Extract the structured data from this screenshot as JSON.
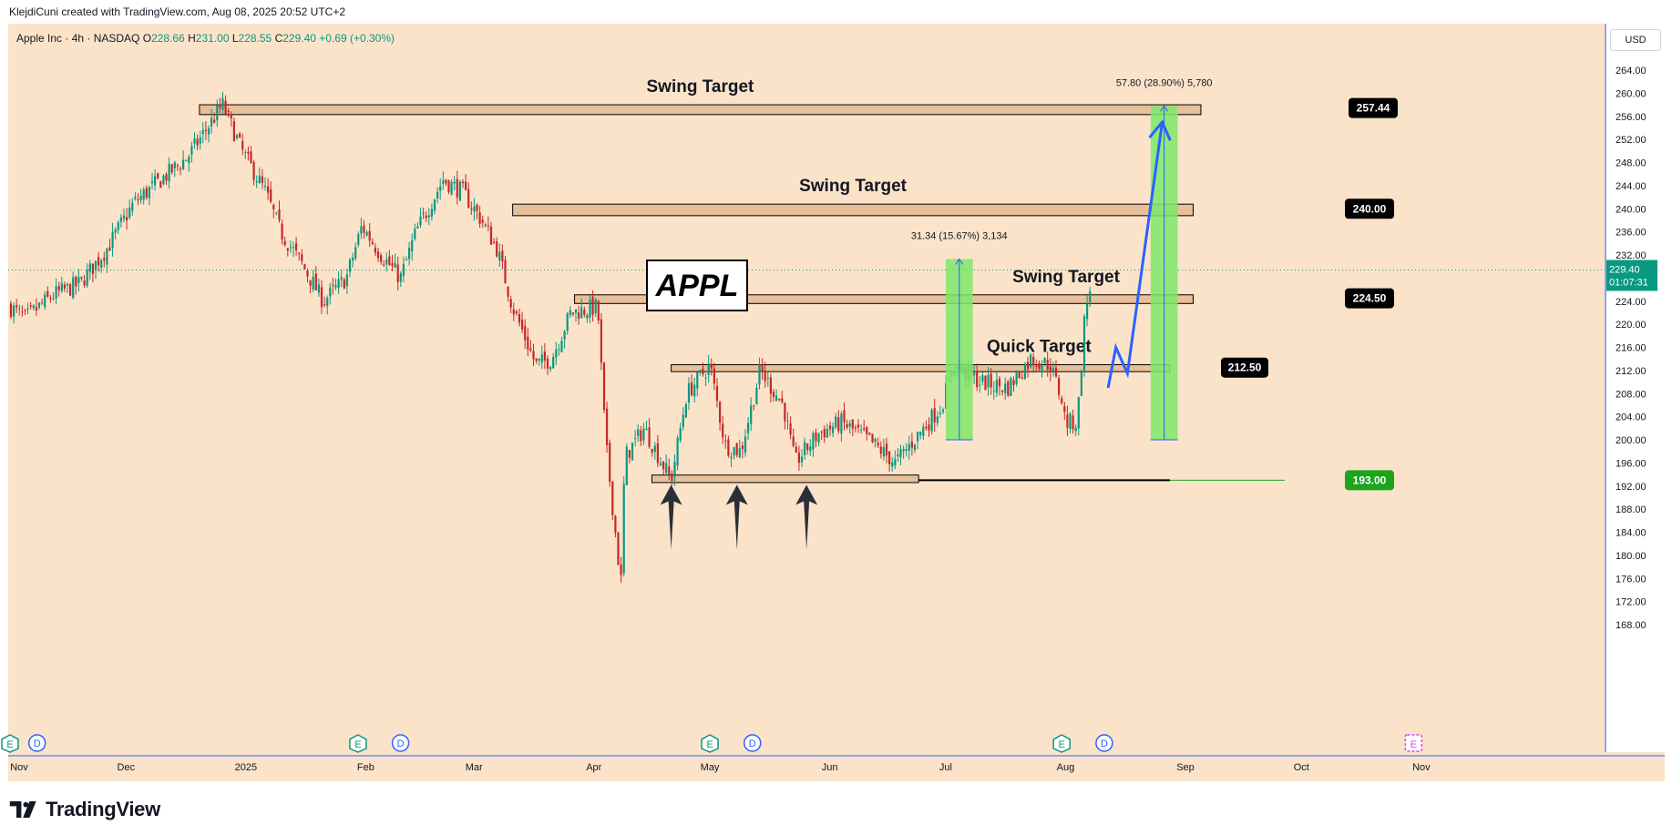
{
  "header": {
    "attribution": "KlejdiCuni created with TradingView.com, Aug 08, 2025 20:52 UTC+2"
  },
  "legend": {
    "symbol": "Apple Inc · 4h · NASDAQ",
    "open_label": "O",
    "open": "228.66",
    "high_label": "H",
    "high": "231.00",
    "low_label": "L",
    "low": "228.55",
    "close_label": "C",
    "close": "229.40",
    "change": "+0.69 (+0.30%)"
  },
  "currency": "USD",
  "footer": {
    "brand": "TradingView"
  },
  "colors": {
    "background": "#fbe3c9",
    "up": "#089981",
    "down": "#c62828",
    "zone_fill": "#e3b891",
    "projection_fill": "#7ee86a",
    "projection_arrow": "#2962ff",
    "label_black": "#000000",
    "label_green": "#1ca41c",
    "price_axis_current": "#089981"
  },
  "chart_data": {
    "type": "candlestick",
    "title": "APPL",
    "timeframe": "4h",
    "ylim": [
      166,
      269
    ],
    "y_ticks": [
      168,
      172,
      176,
      180,
      184,
      188,
      192,
      196,
      200,
      204,
      208,
      212,
      216,
      220,
      224,
      228,
      232,
      236,
      240,
      244,
      248,
      252,
      256,
      260,
      264,
      268
    ],
    "x_labels": [
      "Nov",
      "Dec",
      "2025",
      "Feb",
      "Mar",
      "Apr",
      "May",
      "Jun",
      "Jul",
      "Aug",
      "Sep",
      "Oct",
      "Nov"
    ],
    "current_price": "229.40",
    "countdown": "01:07:31",
    "price_path": [
      [
        "2024-11-01",
        223
      ],
      [
        "2024-11-05",
        221
      ],
      [
        "2024-11-12",
        225
      ],
      [
        "2024-11-19",
        227
      ],
      [
        "2024-11-26",
        233
      ],
      [
        "2024-12-03",
        241
      ],
      [
        "2024-12-10",
        245
      ],
      [
        "2024-12-17",
        249
      ],
      [
        "2024-12-26",
        258
      ],
      [
        "2024-12-31",
        250
      ],
      [
        "2025-01-06",
        243
      ],
      [
        "2025-01-10",
        236
      ],
      [
        "2025-01-15",
        231
      ],
      [
        "2025-01-21",
        224
      ],
      [
        "2025-01-27",
        228
      ],
      [
        "2025-01-31",
        237
      ],
      [
        "2025-02-05",
        232
      ],
      [
        "2025-02-10",
        228
      ],
      [
        "2025-02-14",
        236
      ],
      [
        "2025-02-21",
        245
      ],
      [
        "2025-02-26",
        243
      ],
      [
        "2025-03-03",
        238
      ],
      [
        "2025-03-07",
        233
      ],
      [
        "2025-03-11",
        223
      ],
      [
        "2025-03-17",
        213
      ],
      [
        "2025-03-21",
        214
      ],
      [
        "2025-03-26",
        222
      ],
      [
        "2025-04-02",
        223
      ],
      [
        "2025-04-04",
        200
      ],
      [
        "2025-04-08",
        175
      ],
      [
        "2025-04-09",
        197
      ],
      [
        "2025-04-14",
        202
      ],
      [
        "2025-04-21",
        193
      ],
      [
        "2025-04-25",
        208
      ],
      [
        "2025-05-01",
        213
      ],
      [
        "2025-05-05",
        199
      ],
      [
        "2025-05-09",
        198
      ],
      [
        "2025-05-14",
        212
      ],
      [
        "2025-05-20",
        206
      ],
      [
        "2025-05-23",
        196
      ],
      [
        "2025-05-29",
        201
      ],
      [
        "2025-06-04",
        203
      ],
      [
        "2025-06-11",
        200
      ],
      [
        "2025-06-18",
        196
      ],
      [
        "2025-06-24",
        201
      ],
      [
        "2025-06-30",
        206
      ],
      [
        "2025-07-03",
        213
      ],
      [
        "2025-07-10",
        210
      ],
      [
        "2025-07-17",
        209
      ],
      [
        "2025-07-23",
        214
      ],
      [
        "2025-07-28",
        213
      ],
      [
        "2025-07-31",
        207
      ],
      [
        "2025-08-01",
        203
      ],
      [
        "2025-08-04",
        203
      ],
      [
        "2025-08-05",
        212
      ],
      [
        "2025-08-06",
        222
      ],
      [
        "2025-08-07",
        225
      ],
      [
        "2025-08-08",
        229.4
      ]
    ],
    "zones": [
      {
        "label": "Swing Target",
        "price": "257.44",
        "low": 256.3,
        "high": 258.0,
        "from": "2024-12-20",
        "to": "2025-09-05"
      },
      {
        "label": "Swing Target",
        "price": "240.00",
        "low": 238.8,
        "high": 240.8,
        "from": "2025-03-11",
        "to": "2025-09-03"
      },
      {
        "label": "Swing Target",
        "price": "224.50",
        "low": 223.6,
        "high": 225.1,
        "from": "2025-03-27",
        "to": "2025-09-03"
      },
      {
        "label": "Quick Target",
        "price": "212.50",
        "low": 211.8,
        "high": 213.0,
        "from": "2025-04-21",
        "to": "2025-08-28"
      },
      {
        "label": "",
        "price": "193.00",
        "low": 192.6,
        "high": 193.9,
        "from": "2025-04-16",
        "to": "2025-06-24"
      }
    ],
    "support_line": {
      "price": 193.0,
      "from": "2025-06-24",
      "to": "2025-08-28"
    },
    "measures": [
      {
        "text": "31.34 (15.67%) 3,134",
        "from": "2025-07-01",
        "to": "2025-07-08",
        "low": 200,
        "high": 231.3
      },
      {
        "text": "57.80 (28.90%) 5,780",
        "from": "2025-08-23",
        "to": "2025-08-30",
        "low": 200,
        "high": 257.8
      }
    ],
    "projection_path": [
      [
        "2025-08-12",
        209
      ],
      [
        "2025-08-14",
        216
      ],
      [
        "2025-08-17",
        211.5
      ],
      [
        "2025-08-26",
        255
      ]
    ],
    "bounce_arrows": [
      "2025-04-21",
      "2025-05-08",
      "2025-05-26"
    ],
    "events_earnings": [
      "2024-11-01",
      "2025-01-30",
      "2025-05-01",
      "2025-07-31"
    ],
    "events_dividends": [
      "2024-11-08",
      "2025-02-10",
      "2025-05-12",
      "2025-08-11"
    ],
    "upcoming_earnings": "2025-10-30"
  }
}
